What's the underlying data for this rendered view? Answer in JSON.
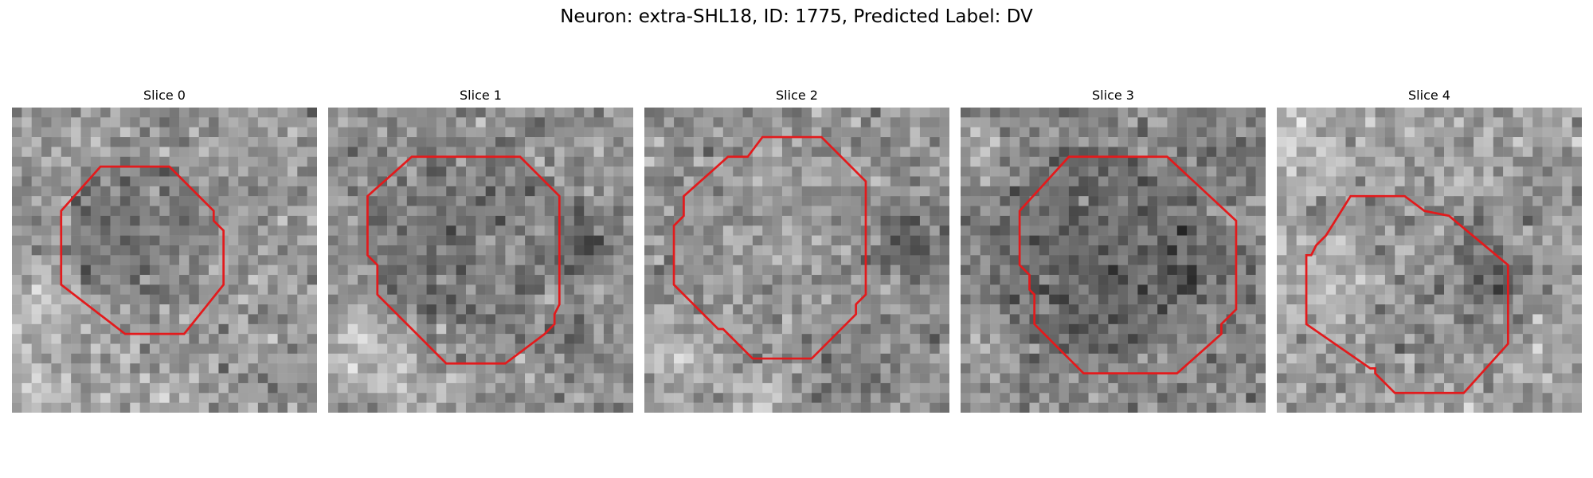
{
  "figure": {
    "title": "Neuron: extra-SHL18, ID: 1775, Predicted Label: DV"
  },
  "outline_color": "#e31a1c",
  "panels": [
    {
      "title": "Slice 0"
    },
    {
      "title": "Slice 1"
    },
    {
      "title": "Slice 2"
    },
    {
      "title": "Slice 3"
    },
    {
      "title": "Slice 4"
    }
  ]
}
